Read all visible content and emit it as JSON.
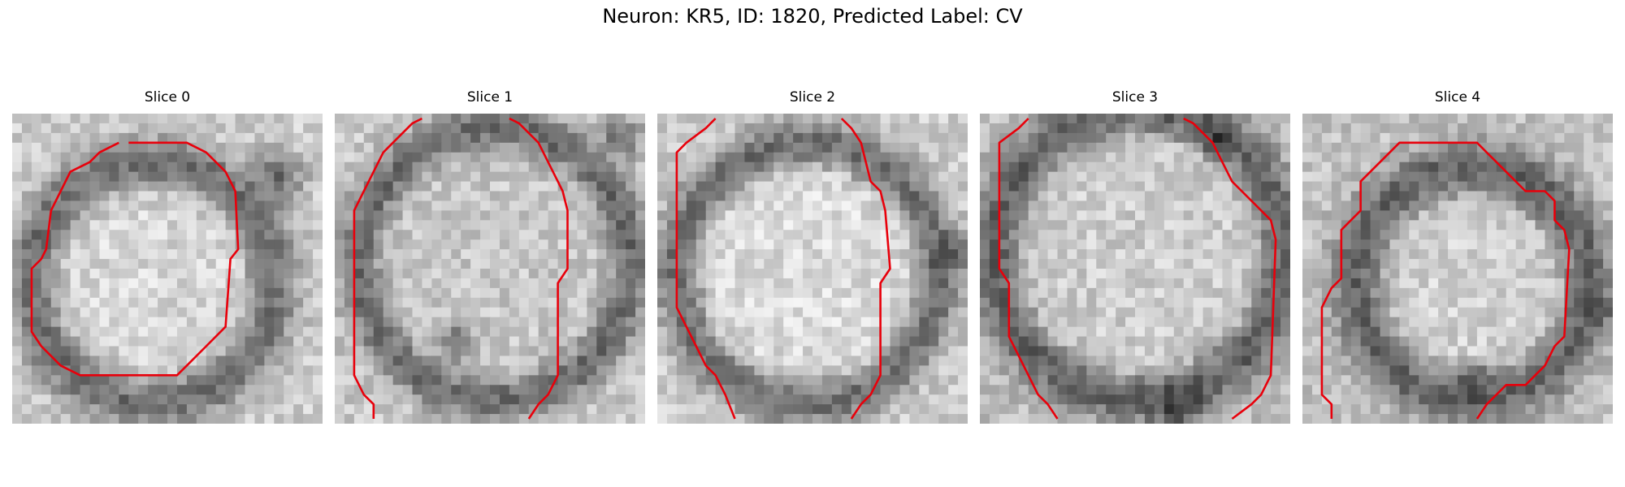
{
  "figure": {
    "title": "Neuron: KR5, ID: 1820, Predicted Label: CV"
  },
  "panels": [
    {
      "title": "Slice 0",
      "style": "ring",
      "seed": 11
    },
    {
      "title": "Slice 1",
      "style": "edge",
      "seed": 23
    },
    {
      "title": "Slice 2",
      "style": "soft",
      "seed": 37
    },
    {
      "title": "Slice 3",
      "style": "dark",
      "seed": 41
    },
    {
      "title": "Slice 4",
      "style": "ring2",
      "seed": 53
    }
  ],
  "colors": {
    "contour": "#e8000b"
  }
}
